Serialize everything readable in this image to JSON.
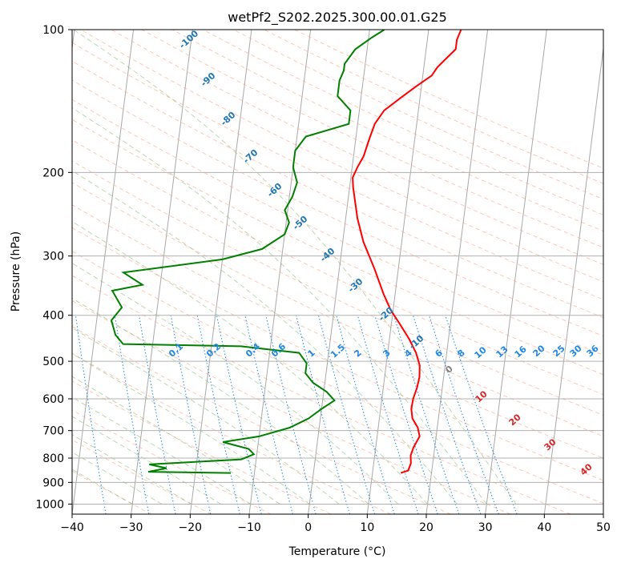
{
  "chart_data": {
    "type": "line",
    "title": "wetPf2_S202.2025.300.00.01.G25",
    "xlabel": "Temperature (°C)",
    "ylabel": "Pressure (hPa)",
    "xlim": [
      -40,
      50
    ],
    "ylim": [
      1050,
      100
    ],
    "y_scale": "log",
    "x_ticks": [
      "−40",
      "−30",
      "−20",
      "−10",
      "0",
      "10",
      "20",
      "30",
      "40",
      "50"
    ],
    "y_ticks": [
      "100",
      "200",
      "300",
      "400",
      "500",
      "600",
      "700",
      "800",
      "900",
      "1000"
    ],
    "grid": true,
    "series": [
      {
        "role": "temperature",
        "color": "#ff0000",
        "points": [
          [
            14.8,
            860
          ],
          [
            16.0,
            850
          ],
          [
            16.3,
            820
          ],
          [
            16.1,
            790
          ],
          [
            16.4,
            760
          ],
          [
            17.2,
            720
          ],
          [
            16.7,
            690
          ],
          [
            15.6,
            660
          ],
          [
            15.2,
            630
          ],
          [
            15.3,
            600
          ],
          [
            15.7,
            570
          ],
          [
            15.9,
            540
          ],
          [
            15.7,
            510
          ],
          [
            14.8,
            480
          ],
          [
            13.4,
            450
          ],
          [
            11.6,
            420
          ],
          [
            9.6,
            390
          ],
          [
            8.0,
            360
          ],
          [
            6.0,
            320
          ],
          [
            3.5,
            280
          ],
          [
            2.0,
            250
          ],
          [
            0.6,
            215
          ],
          [
            0.3,
            205
          ],
          [
            0.9,
            195
          ],
          [
            1.7,
            185
          ],
          [
            2.3,
            170
          ],
          [
            2.9,
            158
          ],
          [
            4.2,
            148
          ],
          [
            6.5,
            140
          ],
          [
            9.0,
            132
          ],
          [
            11.5,
            125
          ],
          [
            12.3,
            120
          ],
          [
            13.6,
            115
          ],
          [
            15.0,
            110
          ],
          [
            15.0,
            105
          ],
          [
            15.5,
            100
          ]
        ]
      },
      {
        "role": "dewpoint",
        "color": "#008000",
        "points": [
          [
            -14.0,
            860
          ],
          [
            -28.0,
            855
          ],
          [
            -25.0,
            840
          ],
          [
            -28.0,
            825
          ],
          [
            -12.5,
            805
          ],
          [
            -10.5,
            785
          ],
          [
            -11.5,
            765
          ],
          [
            -16.0,
            740
          ],
          [
            -10.0,
            720
          ],
          [
            -5.0,
            690
          ],
          [
            -2.0,
            660
          ],
          [
            0.0,
            630
          ],
          [
            2.0,
            605
          ],
          [
            0.5,
            580
          ],
          [
            -2.0,
            555
          ],
          [
            -3.5,
            530
          ],
          [
            -3.5,
            505
          ],
          [
            -5.0,
            480
          ],
          [
            -15.0,
            465
          ],
          [
            -35.0,
            460
          ],
          [
            -36.5,
            440
          ],
          [
            -37.5,
            410
          ],
          [
            -36.0,
            385
          ],
          [
            -38.0,
            355
          ],
          [
            -33.0,
            345
          ],
          [
            -36.5,
            325
          ],
          [
            -20.0,
            305
          ],
          [
            -13.5,
            290
          ],
          [
            -10.0,
            270
          ],
          [
            -9.5,
            255
          ],
          [
            -10.5,
            240
          ],
          [
            -9.5,
            225
          ],
          [
            -9.0,
            210
          ],
          [
            -10.0,
            195
          ],
          [
            -10.0,
            180
          ],
          [
            -8.5,
            168
          ],
          [
            -1.5,
            158
          ],
          [
            -1.5,
            148
          ],
          [
            -4.0,
            138
          ],
          [
            -4.0,
            128
          ],
          [
            -3.5,
            122
          ],
          [
            -3.5,
            118
          ],
          [
            -2.0,
            110
          ],
          [
            0.5,
            104
          ],
          [
            2.5,
            100
          ]
        ]
      }
    ],
    "annotations": {
      "isotherms": [
        {
          "text": "-100",
          "color": "#1f77b4"
        },
        {
          "text": "-90",
          "color": "#1f77b4"
        },
        {
          "text": "-80",
          "color": "#1f77b4"
        },
        {
          "text": "-70",
          "color": "#1f77b4"
        },
        {
          "text": "-60",
          "color": "#1f77b4"
        },
        {
          "text": "-50",
          "color": "#1f77b4"
        },
        {
          "text": "-40",
          "color": "#1f77b4"
        },
        {
          "text": "-30",
          "color": "#1f77b4"
        },
        {
          "text": "-20",
          "color": "#1f77b4"
        },
        {
          "text": "-10",
          "color": "#1f77b4"
        }
      ],
      "mixing_ratio": [
        {
          "text": "0.1"
        },
        {
          "text": "0.2"
        },
        {
          "text": "0.4"
        },
        {
          "text": "0.6"
        },
        {
          "text": "1"
        },
        {
          "text": "1.5"
        },
        {
          "text": "2"
        },
        {
          "text": "3"
        },
        {
          "text": "4"
        },
        {
          "text": "6"
        },
        {
          "text": "8"
        },
        {
          "text": "10"
        },
        {
          "text": "13"
        },
        {
          "text": "16"
        },
        {
          "text": "20"
        },
        {
          "text": "25"
        },
        {
          "text": "30"
        },
        {
          "text": "36"
        }
      ],
      "isotherms_warm": [
        {
          "text": "0",
          "color": "#7f7f7f"
        },
        {
          "text": "10",
          "color": "#d62728"
        },
        {
          "text": "20",
          "color": "#d62728"
        },
        {
          "text": "30",
          "color": "#d62728"
        },
        {
          "text": "40",
          "color": "#d62728"
        }
      ],
      "mixing_ratio_color": "#1e88e5"
    }
  }
}
